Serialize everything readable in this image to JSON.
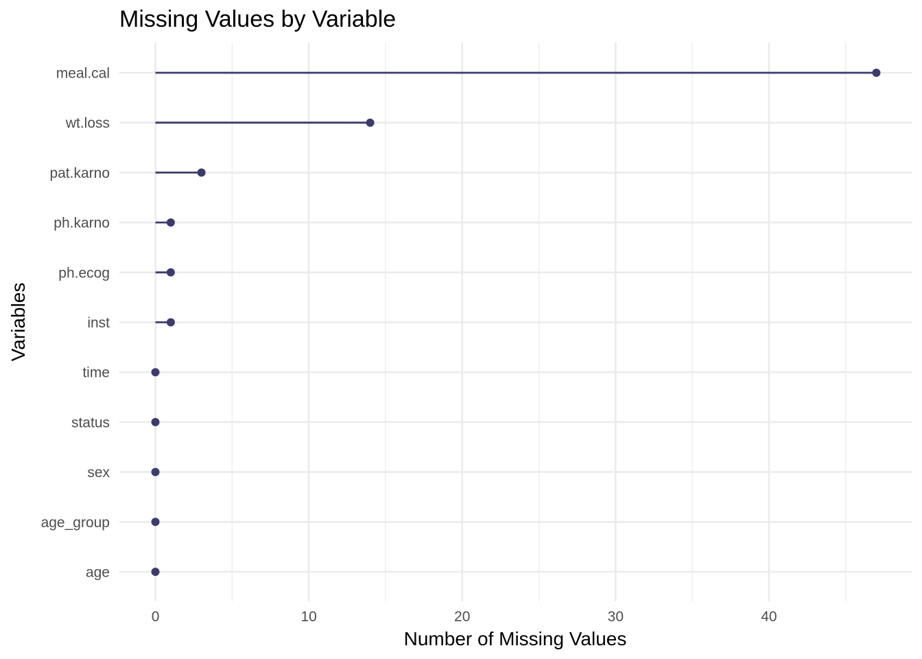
{
  "chart_data": {
    "type": "lollipop",
    "title": "Missing Values by Variable",
    "xlabel": "Number of Missing Values",
    "ylabel": "Variables",
    "xlim": [
      -2.35,
      49.35
    ],
    "x_ticks": [
      0,
      10,
      20,
      30,
      40
    ],
    "x_minor_ticks": [
      5,
      15,
      25,
      35,
      45
    ],
    "grid": true,
    "categories": [
      "meal.cal",
      "wt.loss",
      "pat.karno",
      "ph.karno",
      "ph.ecog",
      "inst",
      "time",
      "status",
      "sex",
      "age_group",
      "age"
    ],
    "values": [
      47,
      14,
      3,
      1,
      1,
      1,
      0,
      0,
      0,
      0,
      0
    ],
    "colors": {
      "lollipop": "#3b3b6d",
      "grid": "#ebebeb"
    }
  }
}
